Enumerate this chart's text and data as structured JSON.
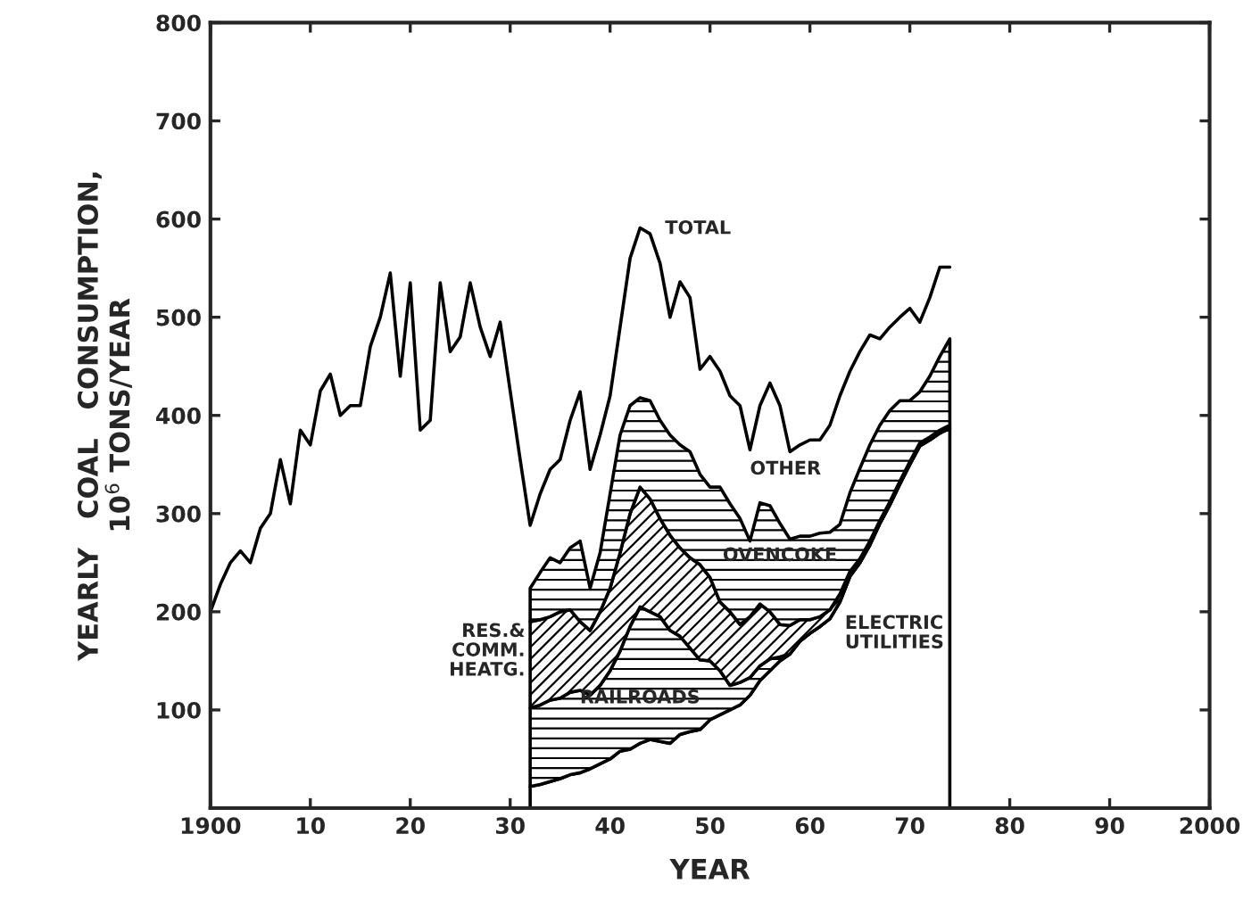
{
  "chart_data": {
    "type": "area",
    "stacked": true,
    "xlabel": "YEAR",
    "ylabel": "YEARLY   COAL   CONSUMPTION,\n10$^{6}$ TONS/YEAR",
    "x": [
      1932,
      1933,
      1934,
      1935,
      1936,
      1937,
      1938,
      1939,
      1940,
      1941,
      1942,
      1943,
      1944,
      1945,
      1946,
      1947,
      1948,
      1949,
      1950,
      1951,
      1952,
      1953,
      1954,
      1955,
      1956,
      1957,
      1958,
      1959,
      1960,
      1961,
      1962,
      1963,
      1964,
      1965,
      1966,
      1967,
      1968,
      1969,
      1970,
      1971,
      1972,
      1973,
      1974
    ],
    "series": [
      {
        "name": "ELECTRIC\nUTILITIES",
        "color": "#000000",
        "values": [
          22,
          24,
          27,
          30,
          34,
          36,
          40,
          45,
          50,
          58,
          60,
          66,
          70,
          68,
          66,
          75,
          78,
          80,
          90,
          95,
          100,
          105,
          115,
          130,
          140,
          150,
          157,
          170,
          178,
          185,
          193,
          210,
          236,
          250,
          268,
          290,
          309,
          330,
          350,
          369,
          375,
          382,
          387
        ]
      },
      {
        "name": "RAILROADS",
        "color": "#000000",
        "values": [
          80,
          81,
          83,
          82,
          84,
          84,
          75,
          80,
          90,
          102,
          125,
          139,
          130,
          127,
          115,
          100,
          85,
          71,
          60,
          45,
          25,
          23,
          18,
          15,
          12,
          4,
          0,
          0,
          0,
          0,
          0,
          0,
          0,
          0,
          0,
          0,
          0,
          0,
          0,
          0,
          0,
          0,
          0
        ]
      },
      {
        "name": "RES.&\nCOMM.\nHEATG.",
        "color": "#000000",
        "values": [
          88,
          87,
          85,
          88,
          84,
          70,
          66,
          75,
          84,
          100,
          115,
          122,
          115,
          100,
          97,
          90,
          92,
          97,
          85,
          70,
          75,
          59,
          62,
          63,
          48,
          33,
          29,
          22,
          14,
          10,
          9,
          8,
          5,
          4,
          4,
          3,
          3,
          3,
          3,
          3,
          3,
          3,
          3
        ]
      },
      {
        "name": "OVENCOKE",
        "color": "#000000",
        "values": [
          34,
          48,
          60,
          50,
          63,
          82,
          43,
          60,
          96,
          120,
          110,
          91,
          100,
          100,
          102,
          105,
          108,
          92,
          92,
          117,
          110,
          108,
          77,
          103,
          108,
          103,
          88,
          85,
          85,
          85,
          79,
          71,
          80,
          92,
          98,
          97,
          93,
          82,
          62,
          52,
          62,
          75,
          88
        ]
      },
      {
        "name": "TOTAL",
        "type": "line",
        "color": "#000000",
        "x": [
          1900,
          1901,
          1902,
          1903,
          1904,
          1905,
          1906,
          1907,
          1908,
          1909,
          1910,
          1911,
          1912,
          1913,
          1914,
          1915,
          1916,
          1917,
          1918,
          1919,
          1920,
          1921,
          1922,
          1923,
          1924,
          1925,
          1926,
          1927,
          1928,
          1929,
          1930,
          1931,
          1932,
          1933,
          1934,
          1935,
          1936,
          1937,
          1938,
          1939,
          1940,
          1941,
          1942,
          1943,
          1944,
          1945,
          1946,
          1947,
          1948,
          1949,
          1950,
          1951,
          1952,
          1953,
          1954,
          1955,
          1956,
          1957,
          1958,
          1959,
          1960,
          1961,
          1962,
          1963,
          1964,
          1965,
          1966,
          1967,
          1968,
          1969,
          1970,
          1971,
          1972,
          1973,
          1974
        ],
        "values": [
          200,
          228,
          250,
          262,
          250,
          285,
          300,
          355,
          310,
          385,
          370,
          425,
          442,
          400,
          410,
          410,
          470,
          500,
          545,
          440,
          535,
          385,
          395,
          535,
          465,
          480,
          535,
          490,
          460,
          495,
          425,
          355,
          288,
          320,
          345,
          355,
          395,
          424,
          345,
          380,
          420,
          490,
          560,
          591,
          585,
          555,
          500,
          536,
          520,
          447,
          460,
          445,
          420,
          410,
          365,
          410,
          433,
          410,
          363,
          370,
          375,
          375,
          390,
          420,
          445,
          465,
          482,
          478,
          490,
          500,
          509,
          495,
          520,
          551,
          551
        ]
      }
    ],
    "annotations": [
      "OTHER"
    ],
    "xlim": [
      1900,
      2000
    ],
    "xticks": [
      1900,
      {
        "value": 1910,
        "label": "10"
      },
      {
        "value": 1920,
        "label": "20"
      },
      {
        "value": 1930,
        "label": "30"
      },
      {
        "value": 1940,
        "label": "40"
      },
      {
        "value": 1950,
        "label": "50"
      },
      {
        "value": 1960,
        "label": "60"
      },
      {
        "value": 1970,
        "label": "70"
      },
      {
        "value": 1980,
        "label": "80"
      },
      {
        "value": 1990,
        "label": "90"
      },
      2000
    ],
    "ylim": [
      0,
      800
    ],
    "yticks": [
      {
        "value": 0,
        "label": null
      },
      100,
      200,
      300,
      400,
      500,
      600,
      700,
      800
    ],
    "grid": false,
    "legend": false
  }
}
